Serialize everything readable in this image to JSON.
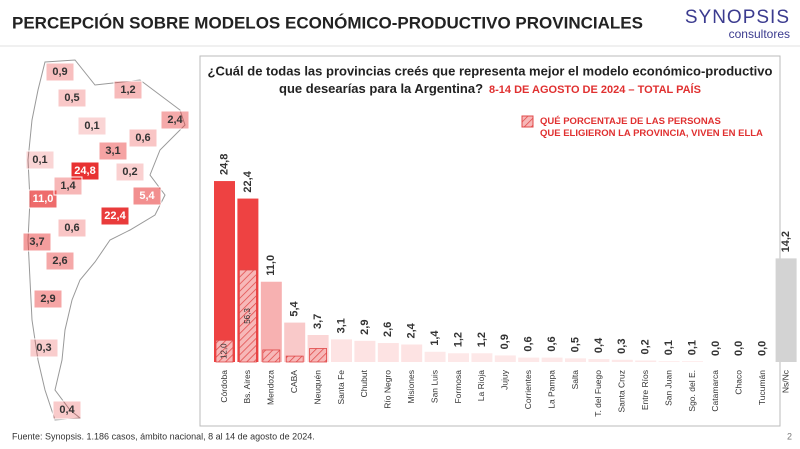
{
  "header": {
    "title": "PERCEPCIÓN SOBRE MODELOS ECONÓMICO-PRODUCTIVO PROVINCIALES",
    "logo": "SYNOPSIS",
    "logo_sub": "consultores"
  },
  "chart_data": {
    "type": "bar",
    "question": [
      "¿Cuál de todas las provincias creés que representa mejor el modelo económico-productivo",
      "que desearías para la Argentina?"
    ],
    "subtitle": "8-14 DE AGOSTO DE 2024 – TOTAL PAÍS",
    "legend": "QUÉ PORCENTAJE DE LAS PERSONAS QUE ELIGIERON LA PROVINCIA, VIVEN EN ELLA",
    "categories": [
      "Córdoba",
      "Bs. Aires",
      "Mendoza",
      "CABA",
      "Neuquén",
      "Santa Fe",
      "Chubut",
      "Río Negro",
      "Misiones",
      "San Luis",
      "Formosa",
      "La Rioja",
      "Jujuy",
      "Corrientes",
      "La Pampa",
      "Salta",
      "T. del Fuego",
      "Santa Cruz",
      "Entre Ríos",
      "San Juan",
      "Sgo. del E.",
      "Catamarca",
      "Chaco",
      "Tucumán",
      "Ns/Nc"
    ],
    "values": [
      24.8,
      22.4,
      11.0,
      5.4,
      3.7,
      3.1,
      2.9,
      2.6,
      2.4,
      1.4,
      1.2,
      1.2,
      0.9,
      0.6,
      0.6,
      0.5,
      0.4,
      0.3,
      0.2,
      0.1,
      0.1,
      0.0,
      0.0,
      0.0,
      14.2
    ],
    "value_labels": [
      "24,8",
      "22,4",
      "11,0",
      "5,4",
      "3,7",
      "3,1",
      "2,9",
      "2,6",
      "2,4",
      "1,4",
      "1,2",
      "1,2",
      "0,9",
      "0,6",
      "0,6",
      "0,5",
      "0,4",
      "0,3",
      "0,2",
      "0,1",
      "0,1",
      "0,0",
      "0,0",
      "0,0",
      "14,2"
    ],
    "colors": [
      "#ee4242",
      "#ee4242",
      "#f7b1b1",
      "#f9c9c9",
      "#fbd6d6",
      "#fde3e3",
      "#fde3e3",
      "#fde3e3",
      "#fde3e3",
      "#fde8e8",
      "#fde8e8",
      "#fde8e8",
      "#fde8e8",
      "#fde8e8",
      "#fde8e8",
      "#fde8e8",
      "#fde8e8",
      "#fde8e8",
      "#fde8e8",
      "#fde8e8",
      "#fde8e8",
      "#fde8e8",
      "#fde8e8",
      "#fde8e8",
      "#d3d3d3"
    ],
    "hatch_percent": [
      12.0,
      56.3,
      15,
      15,
      50,
      null,
      null,
      null,
      null,
      null,
      null,
      null,
      null,
      null,
      null,
      null,
      null,
      null,
      null,
      null,
      null,
      null,
      null,
      null,
      null
    ],
    "hatch_labels": [
      "12,0",
      "56,3",
      null,
      null,
      null,
      null,
      null,
      null,
      null,
      null,
      null,
      null,
      null,
      null,
      null,
      null,
      null,
      null,
      null,
      null,
      null,
      null,
      null,
      null,
      null
    ],
    "ylim": [
      0,
      27
    ]
  },
  "footer": {
    "source": "Fuente: Synopsis. 1.186 casos, ámbito nacional, 8 al 14 de agosto de 2024.",
    "page": "2"
  }
}
